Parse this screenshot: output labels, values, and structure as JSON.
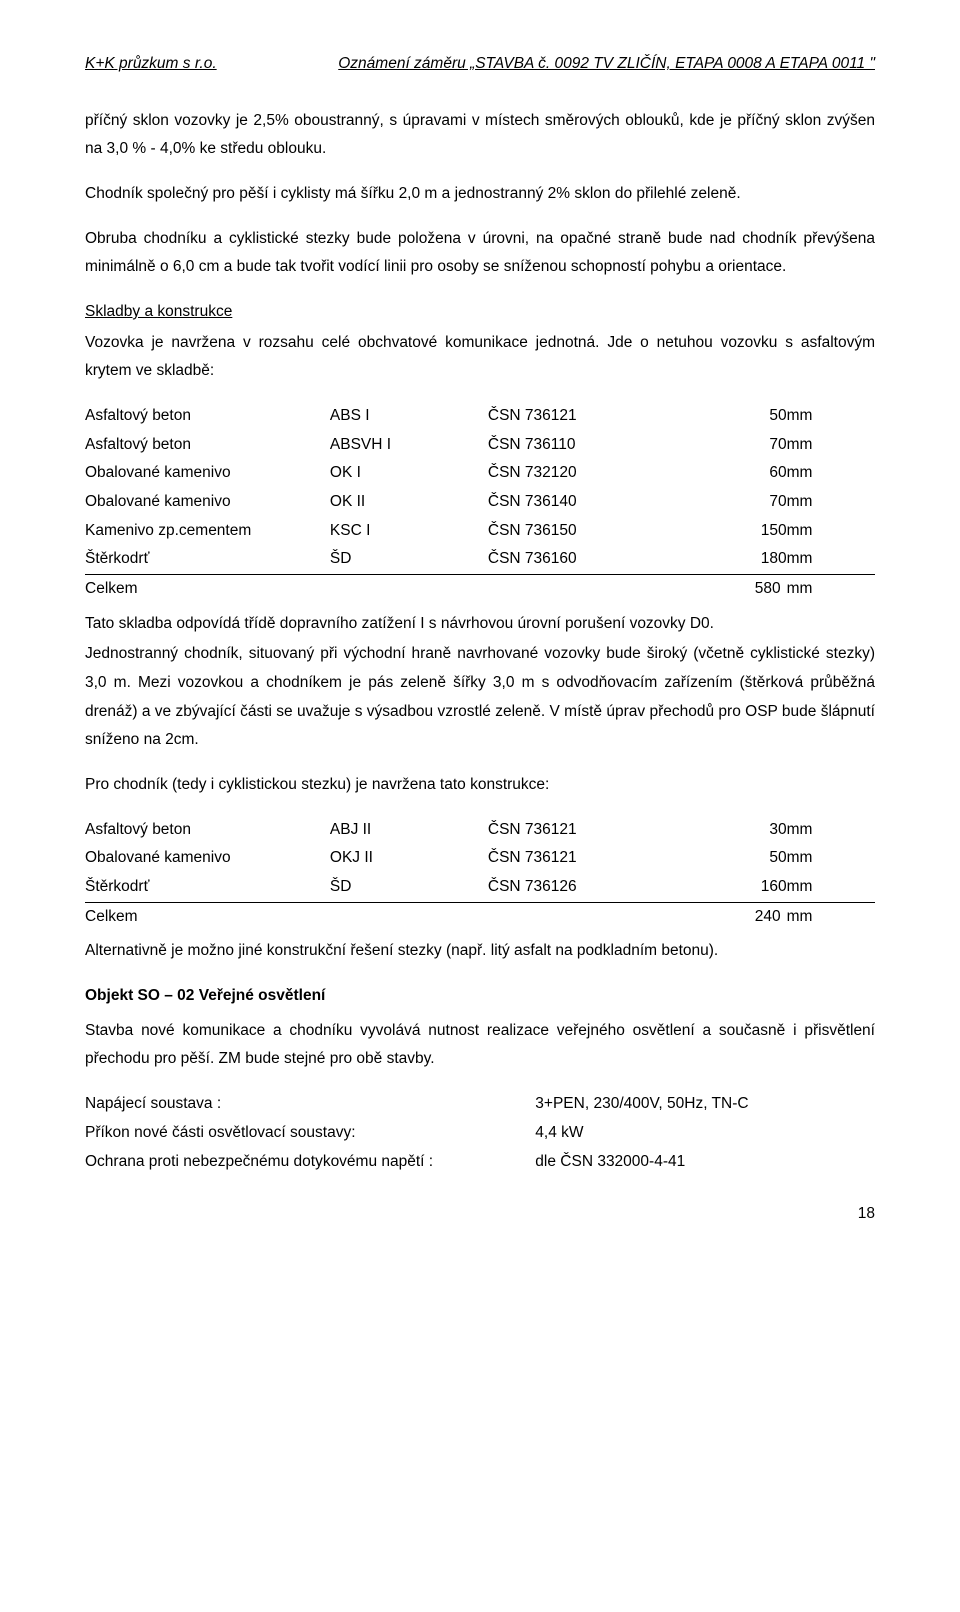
{
  "header": {
    "left": "K+K průzkum s r.o.",
    "right": "Oznámení záměru „STAVBA č. 0092 TV ZLIČÍN, ETAPA 0008 A ETAPA 0011 \""
  },
  "para1": "příčný sklon vozovky je 2,5% oboustranný, s úpravami v místech směrových oblouků, kde je příčný sklon zvýšen na 3,0 %  - 4,0% ke středu oblouku.",
  "para2": "Chodník společný pro pěší i cyklisty má šířku 2,0 m a jednostranný 2% sklon do přilehlé zeleně.",
  "para3": "Obruba chodníku a cyklistické stezky bude položena v úrovni, na opačné straně bude nad chodník převýšena minimálně o 6,0 cm a bude tak tvořit vodící linii pro osoby se sníženou schopností pohybu a orientace.",
  "skladby": {
    "title": "Skladby a konstrukce",
    "intro": "Vozovka je navržena v rozsahu celé obchvatové komunikace jednotná. Jde o netuhou vozovku s asfaltovým krytem ve skladbě:"
  },
  "table1": {
    "rows": [
      {
        "mat": "Asfaltový beton",
        "code": "ABS I",
        "csn": "ČSN 736121",
        "thk": "50",
        "unit": "mm"
      },
      {
        "mat": "Asfaltový beton",
        "code": "ABSVH I",
        "csn": "ČSN 736110",
        "thk": "70",
        "unit": "mm"
      },
      {
        "mat": "Obalované kamenivo",
        "code": "OK I",
        "csn": "ČSN 732120",
        "thk": "60",
        "unit": "mm"
      },
      {
        "mat": "Obalované kamenivo",
        "code": "OK II",
        "csn": "ČSN 736140",
        "thk": "70",
        "unit": "mm"
      },
      {
        "mat": "Kamenivo zp.cementem",
        "code": "KSC I",
        "csn": "ČSN 736150",
        "thk": "150",
        "unit": "mm"
      },
      {
        "mat": "Štěrkodrť",
        "code": "ŠD",
        "csn": "ČSN 736160",
        "thk": "180",
        "unit": "mm"
      }
    ],
    "total_label": "Celkem",
    "total_thk": "580",
    "total_unit": "mm"
  },
  "para4": "Tato skladba odpovídá třídě dopravního zatížení I s návrhovou úrovní porušení vozovky D0.",
  "para5": "Jednostranný chodník, situovaný při východní hraně navrhované vozovky bude široký (včetně cyklistické stezky) 3,0 m. Mezi vozovkou a chodníkem je pás zeleně šířky 3,0 m s odvodňovacím zařízením (štěrková průběžná drenáž) a ve zbývající části se uvažuje s výsadbou vzrostlé zeleně. V místě úprav přechodů pro OSP bude šlápnutí sníženo na 2cm.",
  "para6": "Pro chodník (tedy i cyklistickou stezku)  je navržena tato konstrukce:",
  "table2": {
    "rows": [
      {
        "mat": "Asfaltový beton",
        "code": "ABJ II",
        "csn": "ČSN 736121",
        "thk": "30",
        "unit": "mm"
      },
      {
        "mat": "Obalované kamenivo",
        "code": "OKJ II",
        "csn": "ČSN 736121",
        "thk": "50",
        "unit": "mm"
      },
      {
        "mat": "Štěrkodrť",
        "code": "ŠD",
        "csn": "ČSN 736126",
        "thk": "160",
        "unit": "mm"
      }
    ],
    "total_label": "Celkem",
    "total_thk": "240",
    "total_unit": "mm"
  },
  "para7": "Alternativně je možno jiné konstrukční řešení stezky (např. litý asfalt na podkladním betonu).",
  "obj": {
    "title": "Objekt SO – 02  Veřejné osvětlení",
    "p": "Stavba nové komunikace a chodníku vyvolává nutnost realizace veřejného osvětlení a současně i přisvětlení přechodu pro pěší. ZM bude stejné pro obě stavby.",
    "rows": [
      {
        "k": "Napájecí soustava :",
        "v": "3+PEN, 230/400V, 50Hz, TN-C"
      },
      {
        "k": "Příkon nové části osvětlovací soustavy:",
        "v": "4,4 kW"
      },
      {
        "k": "Ochrana proti nebezpečnému dotykovému napětí :",
        "v": "dle ČSN 332000-4-41"
      }
    ]
  },
  "pagenum": "18"
}
